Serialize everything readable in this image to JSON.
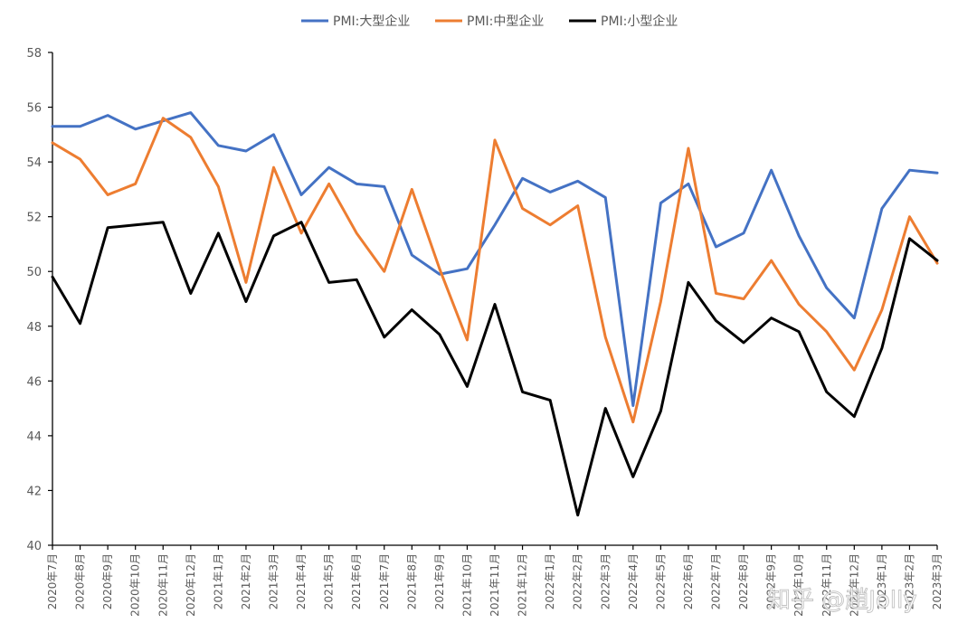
{
  "chart_data": {
    "type": "line",
    "title": "",
    "xlabel": "",
    "ylabel": "",
    "ylim": [
      40,
      58
    ],
    "yticks": [
      40,
      42,
      44,
      46,
      48,
      50,
      52,
      54,
      56,
      58
    ],
    "grid": false,
    "legend_position": "top-center",
    "categories": [
      "2020年7月",
      "2020年8月",
      "2020年9月",
      "2020年10月",
      "2020年11月",
      "2020年12月",
      "2021年1月",
      "2021年2月",
      "2021年3月",
      "2021年4月",
      "2021年5月",
      "2021年6月",
      "2021年7月",
      "2021年8月",
      "2021年9月",
      "2021年10月",
      "2021年11月",
      "2021年12月",
      "2022年1月",
      "2022年2月",
      "2022年3月",
      "2022年4月",
      "2022年5月",
      "2022年6月",
      "2022年7月",
      "2022年8月",
      "2022年9月",
      "2022年10月",
      "2022年11月",
      "2022年12月",
      "2023年1月",
      "2023年2月",
      "2023年3月"
    ],
    "series": [
      {
        "name": "PMI:大型企业",
        "color": "#4472c4",
        "values": [
          55.3,
          55.3,
          55.7,
          55.2,
          55.5,
          55.8,
          54.6,
          54.4,
          55.0,
          52.8,
          53.8,
          53.2,
          53.1,
          50.6,
          49.9,
          50.1,
          51.7,
          53.4,
          52.9,
          53.3,
          52.7,
          45.1,
          52.5,
          53.2,
          50.9,
          51.4,
          53.7,
          51.3,
          49.4,
          48.3,
          52.3,
          53.7,
          53.6
        ]
      },
      {
        "name": "PMI:中型企业",
        "color": "#ed7d31",
        "values": [
          54.7,
          54.1,
          52.8,
          53.2,
          55.6,
          54.9,
          53.1,
          49.6,
          53.8,
          51.4,
          53.2,
          51.4,
          50.0,
          53.0,
          50.1,
          47.5,
          54.8,
          52.3,
          51.7,
          52.4,
          47.6,
          44.5,
          48.9,
          54.5,
          49.2,
          49.0,
          50.4,
          48.8,
          47.8,
          46.4,
          48.6,
          52.0,
          50.3
        ]
      },
      {
        "name": "PMI:小型企业",
        "color": "#000000",
        "values": [
          49.8,
          48.1,
          51.6,
          51.7,
          51.8,
          49.2,
          51.4,
          48.9,
          51.3,
          51.8,
          49.6,
          49.7,
          47.6,
          48.6,
          47.7,
          45.8,
          48.8,
          45.6,
          45.3,
          41.1,
          45.0,
          42.5,
          44.9,
          49.6,
          48.2,
          47.4,
          48.3,
          47.8,
          45.6,
          44.7,
          47.2,
          51.2,
          50.4
        ]
      }
    ]
  },
  "watermark": "知乎 @趙Jolly"
}
